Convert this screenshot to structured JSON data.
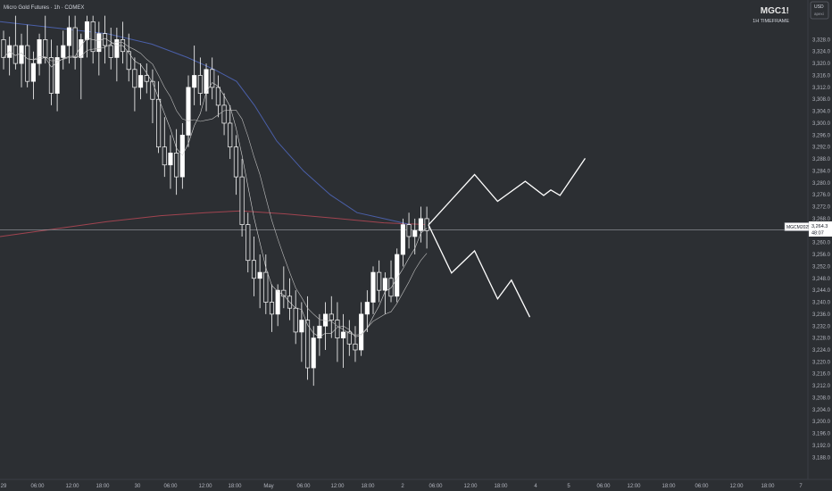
{
  "header": {
    "instrument": "Micro Gold Futures · 1h · COMEX",
    "symbol": "MGC1!",
    "timeframe": "1H TIMEFRAME",
    "currency": "USD",
    "currency_sub": "apexi"
  },
  "price_badge": {
    "contract": "MGCM2025",
    "price": "3,264.3",
    "countdown": "48:07",
    "color": "#ffffff"
  },
  "colors": {
    "background": "#2c2f33",
    "candle": "#ffffff",
    "ma_fast": "#d7d7d7",
    "ma_mid": "#bcbcbc",
    "ma_blue": "#4a5fa8",
    "ma_red": "#a14450",
    "projection": "#ffffff",
    "price_line": "#9a9da5"
  },
  "chart_data": {
    "type": "candlestick",
    "y_axis": {
      "range": [
        3184,
        3336
      ],
      "ticks": [
        "3,188.0",
        "3,192.0",
        "3,196.0",
        "3,200.0",
        "3,204.0",
        "3,208.0",
        "3,212.0",
        "3,216.0",
        "3,220.0",
        "3,224.0",
        "3,228.0",
        "3,232.0",
        "3,236.0",
        "3,240.0",
        "3,244.0",
        "3,248.0",
        "3,252.0",
        "3,256.0",
        "3,260.0",
        "3,264.0",
        "3,268.0",
        "3,272.0",
        "3,276.0",
        "3,280.0",
        "3,284.0",
        "3,288.0",
        "3,292.0",
        "3,296.0",
        "3,300.0",
        "3,304.0",
        "3,308.0",
        "3,312.0",
        "3,316.0",
        "3,320.0",
        "3,324.0",
        "3,328.0"
      ],
      "side": "right"
    },
    "x_axis": {
      "labels": [
        "29",
        "06:00",
        "12:00",
        "18:00",
        "30",
        "06:00",
        "12:00",
        "18:00",
        "May",
        "06:00",
        "12:00",
        "18:00",
        "2",
        "06:00",
        "12:00",
        "18:00",
        "4",
        "5",
        "06:00",
        "12:00",
        "18:00",
        "06:00",
        "12:00",
        "18:00",
        "7"
      ]
    },
    "current_price": 3264.3,
    "candles": [
      [
        3328,
        3331,
        3318,
        3322
      ],
      [
        3322,
        3329,
        3316,
        3326
      ],
      [
        3326,
        3336,
        3318,
        3320
      ],
      [
        3320,
        3330,
        3312,
        3326
      ],
      [
        3326,
        3333,
        3312,
        3314
      ],
      [
        3314,
        3324,
        3308,
        3320
      ],
      [
        3320,
        3330,
        3316,
        3328
      ],
      [
        3328,
        3336,
        3320,
        3322
      ],
      [
        3322,
        3328,
        3306,
        3310
      ],
      [
        3310,
        3326,
        3304,
        3322
      ],
      [
        3322,
        3331,
        3318,
        3326
      ],
      [
        3326,
        3336,
        3320,
        3332
      ],
      [
        3332,
        3336,
        3318,
        3322
      ],
      [
        3322,
        3330,
        3308,
        3328
      ],
      [
        3328,
        3336,
        3322,
        3334
      ],
      [
        3334,
        3336,
        3320,
        3324
      ],
      [
        3324,
        3334,
        3316,
        3330
      ],
      [
        3330,
        3336,
        3320,
        3326
      ],
      [
        3326,
        3332,
        3318,
        3322
      ],
      [
        3322,
        3332,
        3314,
        3328
      ],
      [
        3328,
        3334,
        3320,
        3324
      ],
      [
        3324,
        3330,
        3314,
        3318
      ],
      [
        3318,
        3322,
        3304,
        3312
      ],
      [
        3312,
        3320,
        3308,
        3316
      ],
      [
        3316,
        3320,
        3310,
        3314
      ],
      [
        3314,
        3318,
        3300,
        3308
      ],
      [
        3308,
        3314,
        3290,
        3292
      ],
      [
        3292,
        3302,
        3282,
        3286
      ],
      [
        3286,
        3296,
        3278,
        3290
      ],
      [
        3290,
        3298,
        3276,
        3282
      ],
      [
        3282,
        3300,
        3278,
        3296
      ],
      [
        3296,
        3316,
        3292,
        3312
      ],
      [
        3312,
        3326,
        3306,
        3316
      ],
      [
        3316,
        3322,
        3306,
        3310
      ],
      [
        3310,
        3320,
        3304,
        3318
      ],
      [
        3318,
        3322,
        3308,
        3312
      ],
      [
        3312,
        3316,
        3302,
        3306
      ],
      [
        3306,
        3310,
        3296,
        3300
      ],
      [
        3300,
        3306,
        3288,
        3292
      ],
      [
        3292,
        3296,
        3276,
        3282
      ],
      [
        3282,
        3288,
        3262,
        3266
      ],
      [
        3266,
        3270,
        3250,
        3254
      ],
      [
        3254,
        3262,
        3242,
        3248
      ],
      [
        3248,
        3256,
        3238,
        3250
      ],
      [
        3250,
        3256,
        3236,
        3240
      ],
      [
        3240,
        3246,
        3230,
        3236
      ],
      [
        3236,
        3246,
        3232,
        3244
      ],
      [
        3244,
        3252,
        3238,
        3242
      ],
      [
        3242,
        3248,
        3234,
        3238
      ],
      [
        3238,
        3244,
        3226,
        3230
      ],
      [
        3230,
        3240,
        3220,
        3234
      ],
      [
        3234,
        3242,
        3214,
        3218
      ],
      [
        3218,
        3232,
        3212,
        3228
      ],
      [
        3228,
        3236,
        3222,
        3232
      ],
      [
        3232,
        3240,
        3224,
        3236
      ],
      [
        3236,
        3242,
        3228,
        3234
      ],
      [
        3234,
        3240,
        3220,
        3228
      ],
      [
        3228,
        3236,
        3218,
        3230
      ],
      [
        3230,
        3234,
        3222,
        3226
      ],
      [
        3226,
        3232,
        3220,
        3224
      ],
      [
        3224,
        3240,
        3222,
        3236
      ],
      [
        3236,
        3244,
        3230,
        3240
      ],
      [
        3240,
        3252,
        3236,
        3250
      ],
      [
        3250,
        3254,
        3240,
        3244
      ],
      [
        3244,
        3250,
        3236,
        3248
      ],
      [
        3248,
        3254,
        3240,
        3242
      ],
      [
        3242,
        3258,
        3240,
        3256
      ],
      [
        3256,
        3268,
        3252,
        3266
      ],
      [
        3266,
        3270,
        3258,
        3262
      ],
      [
        3262,
        3268,
        3256,
        3264
      ],
      [
        3264,
        3272,
        3260,
        3268
      ],
      [
        3268,
        3272,
        3258,
        3264
      ]
    ],
    "projection_up_x_labels_note": "",
    "projection_up": [
      [
        0,
        3265.9
      ],
      [
        13,
        3282.8
      ],
      [
        19.5,
        3273.8
      ],
      [
        27.3,
        3280.5
      ],
      [
        32.5,
        3275.8
      ],
      [
        34.5,
        3277.6
      ],
      [
        37.1,
        3275.8
      ],
      [
        44.2,
        3288.2
      ]
    ],
    "projection_down": [
      [
        0,
        3265.9
      ],
      [
        6.5,
        3249.8
      ],
      [
        13,
        3257.2
      ],
      [
        19.5,
        3241.1
      ],
      [
        23.4,
        3247.4
      ],
      [
        28.6,
        3235.0
      ]
    ]
  }
}
